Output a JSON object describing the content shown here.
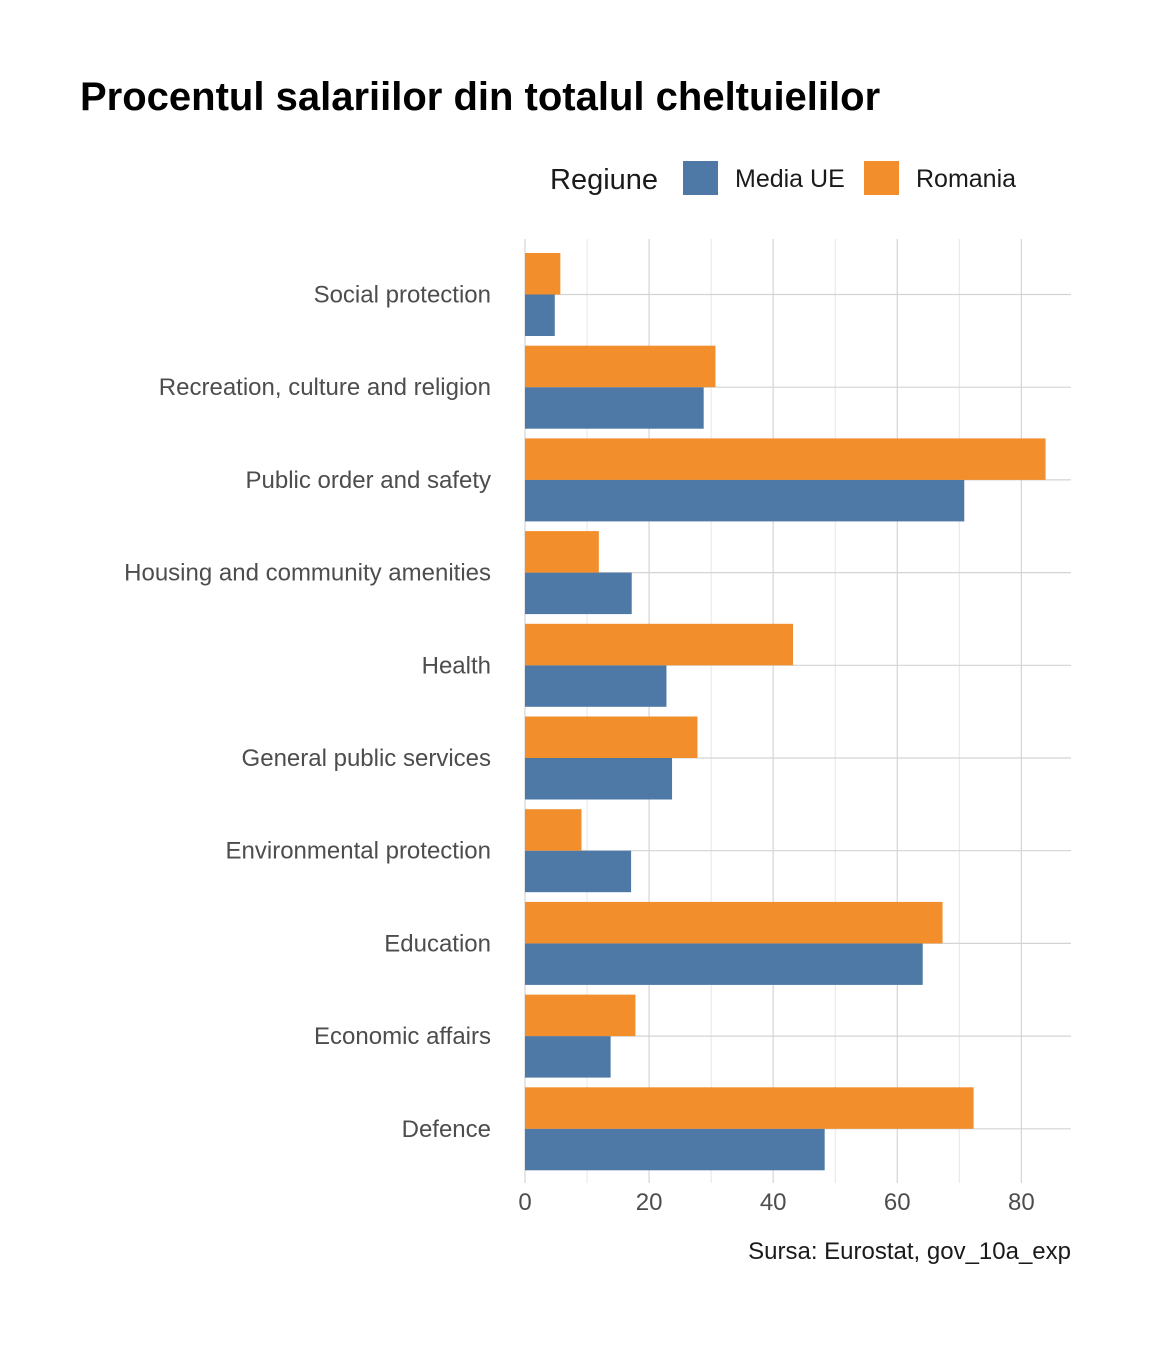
{
  "chart_data": {
    "type": "bar",
    "orientation": "horizontal",
    "title": "Procentul salariilor din totalul cheltuielilor",
    "caption": "Sursa: Eurostat, gov_10a_exp",
    "legend_title": "Regiune",
    "legend_position": "top-right",
    "xlim": [
      0,
      88
    ],
    "x_ticks": [
      0,
      20,
      40,
      60,
      80
    ],
    "grid": true,
    "categories": [
      "Social protection",
      "Recreation, culture and religion",
      "Public order and safety",
      "Housing and community amenities",
      "Health",
      "General public services",
      "Environmental protection",
      "Education",
      "Economic affairs",
      "Defence"
    ],
    "series": [
      {
        "name": "Media UE",
        "color": "#4e79a7",
        "values": [
          4.8,
          28.8,
          70.8,
          17.2,
          22.8,
          23.7,
          17.1,
          64.1,
          13.8,
          48.3
        ]
      },
      {
        "name": "Romania",
        "color": "#f28e2b",
        "values": [
          5.7,
          30.7,
          83.9,
          11.9,
          43.2,
          27.8,
          9.1,
          67.3,
          17.8,
          72.3
        ]
      }
    ]
  }
}
